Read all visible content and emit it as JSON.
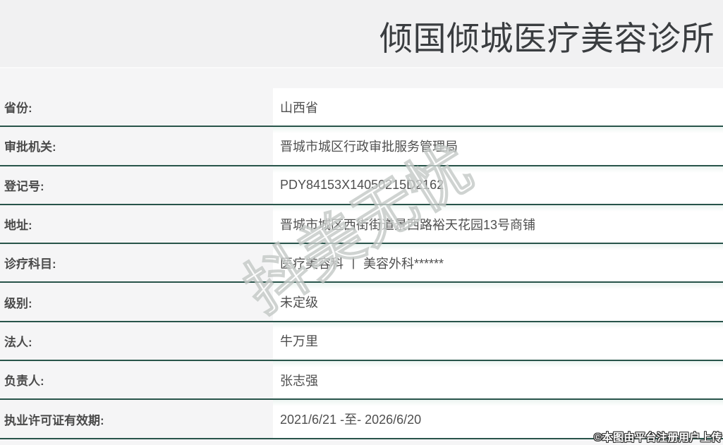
{
  "header": {
    "title": "倾国倾城医疗美容诊所"
  },
  "table": {
    "rows": [
      {
        "label": "省份:",
        "value": "山西省"
      },
      {
        "label": "审批机关:",
        "value": "晋城市城区行政审批服务管理局"
      },
      {
        "label": "登记号:",
        "value": "PDY84153X14050215D2162"
      },
      {
        "label": "地址:",
        "value": "晋城市城区西街街道景西路裕天花园13号商铺"
      },
      {
        "label": "诊疗科目:",
        "value": "医疗美容科 丨 美容外科******"
      },
      {
        "label": "级别:",
        "value": "未定级"
      },
      {
        "label": "法人:",
        "value": "牛万里"
      },
      {
        "label": "负责人:",
        "value": "张志强"
      },
      {
        "label": "执业许可证有效期:",
        "value": "2021/6/21 -至- 2026/6/20"
      }
    ]
  },
  "watermark": {
    "text": "抖美无忧"
  },
  "footer": {
    "copyright": "©本图由平台注册用户上传"
  },
  "colors": {
    "divider": "#28544a",
    "page_bg": "#f5f5f6",
    "header_bg": "#f1f1f2",
    "value_bg": "#ffffff",
    "label_text": "#4a4a4a",
    "title_text": "#3a3d40"
  }
}
